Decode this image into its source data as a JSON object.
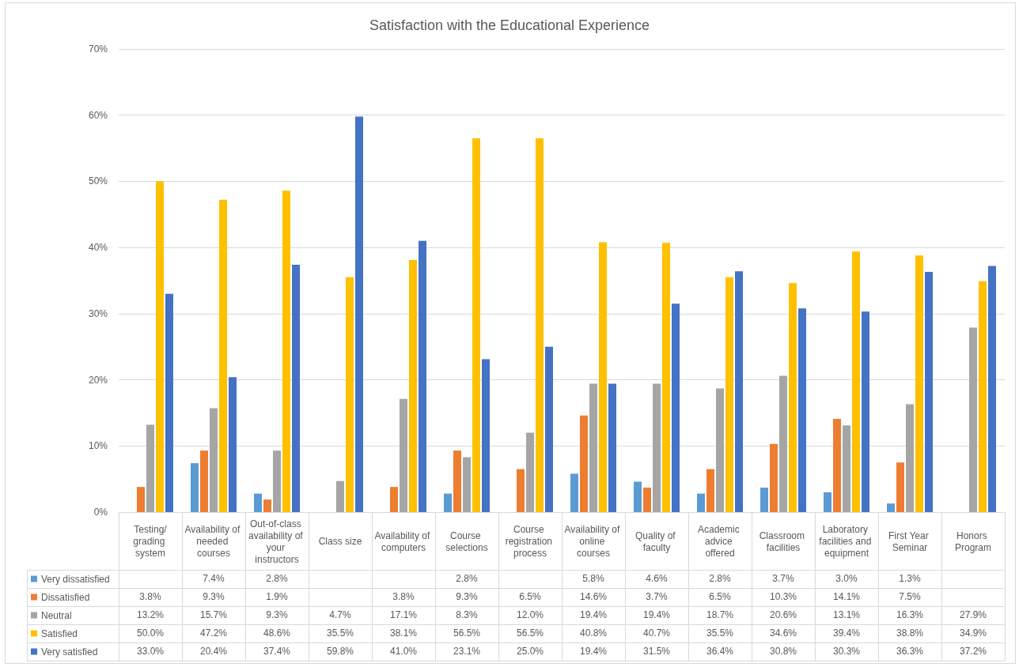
{
  "chart_data": {
    "type": "bar",
    "title": "Satisfaction with the Educational Experience",
    "categories": [
      "Testing/grading system",
      "Availability of needed courses",
      "Out-of-class availability of your instructors",
      "Class size",
      "Availability of computers",
      "Course selections",
      "Course registration process",
      "Availability of online courses",
      "Quality of faculty",
      "Academic advice offered",
      "Classroom facilities",
      "Laboratory facilities and equipment",
      "First Year Seminar",
      "Honors Program"
    ],
    "series": [
      {
        "name": "Very dissatisfied",
        "color": "#5b9bd5",
        "values": [
          null,
          7.4,
          2.8,
          null,
          null,
          2.8,
          null,
          5.8,
          4.6,
          2.8,
          3.7,
          3.0,
          1.3,
          null
        ],
        "value_labels": [
          null,
          "7.4%",
          "2.8%",
          null,
          null,
          "2.8%",
          null,
          "5.8%",
          "4.6%",
          "2.8%",
          "3.7%",
          "3.0%",
          "1.3%",
          null
        ]
      },
      {
        "name": "Dissatisfied",
        "color": "#ed7d31",
        "values": [
          3.8,
          9.3,
          1.9,
          null,
          3.8,
          9.3,
          6.5,
          14.6,
          3.7,
          6.5,
          10.3,
          14.1,
          7.5,
          null
        ],
        "value_labels": [
          "3.8%",
          "9.3%",
          "1.9%",
          null,
          "3.8%",
          "9.3%",
          "6.5%",
          "14.6%",
          "3.7%",
          "6.5%",
          "10.3%",
          "14.1%",
          "7.5%",
          null
        ]
      },
      {
        "name": "Neutral",
        "color": "#a5a5a5",
        "values": [
          13.2,
          15.7,
          9.3,
          4.7,
          17.1,
          8.3,
          12.0,
          19.4,
          19.4,
          18.7,
          20.6,
          13.1,
          16.3,
          27.9
        ],
        "value_labels": [
          "13.2%",
          "15.7%",
          "9.3%",
          "4.7%",
          "17.1%",
          "8.3%",
          "12.0%",
          "19.4%",
          "19.4%",
          "18.7%",
          "20.6%",
          "13.1%",
          "16.3%",
          "27.9%"
        ]
      },
      {
        "name": "Satisfied",
        "color": "#ffc000",
        "values": [
          50.0,
          47.2,
          48.6,
          35.5,
          38.1,
          56.5,
          56.5,
          40.8,
          40.7,
          35.5,
          34.6,
          39.4,
          38.8,
          34.9
        ],
        "value_labels": [
          "50.0%",
          "47.2%",
          "48.6%",
          "35.5%",
          "38.1%",
          "56.5%",
          "56.5%",
          "40.8%",
          "40.7%",
          "35.5%",
          "34.6%",
          "39.4%",
          "38.8%",
          "34.9%"
        ]
      },
      {
        "name": "Very satisfied",
        "color": "#4472c4",
        "values": [
          33.0,
          20.4,
          37.4,
          59.8,
          41.0,
          23.1,
          25.0,
          19.4,
          31.5,
          36.4,
          30.8,
          30.3,
          36.3,
          37.2
        ],
        "value_labels": [
          "33.0%",
          "20.4%",
          "37.4%",
          "59.8%",
          "41.0%",
          "23.1%",
          "25.0%",
          "19.4%",
          "31.5%",
          "36.4%",
          "30.8%",
          "30.3%",
          "36.3%",
          "37.2%"
        ]
      }
    ],
    "ylim": [
      0,
      70
    ],
    "yticks": [
      {
        "value": 0,
        "label": "0%"
      },
      {
        "value": 10,
        "label": "10%"
      },
      {
        "value": 20,
        "label": "20%"
      },
      {
        "value": 30,
        "label": "30%"
      },
      {
        "value": 40,
        "label": "40%"
      },
      {
        "value": 50,
        "label": "50%"
      },
      {
        "value": 60,
        "label": "60%"
      },
      {
        "value": 70,
        "label": "70%"
      }
    ],
    "grid": "y",
    "legend": "bottom"
  }
}
